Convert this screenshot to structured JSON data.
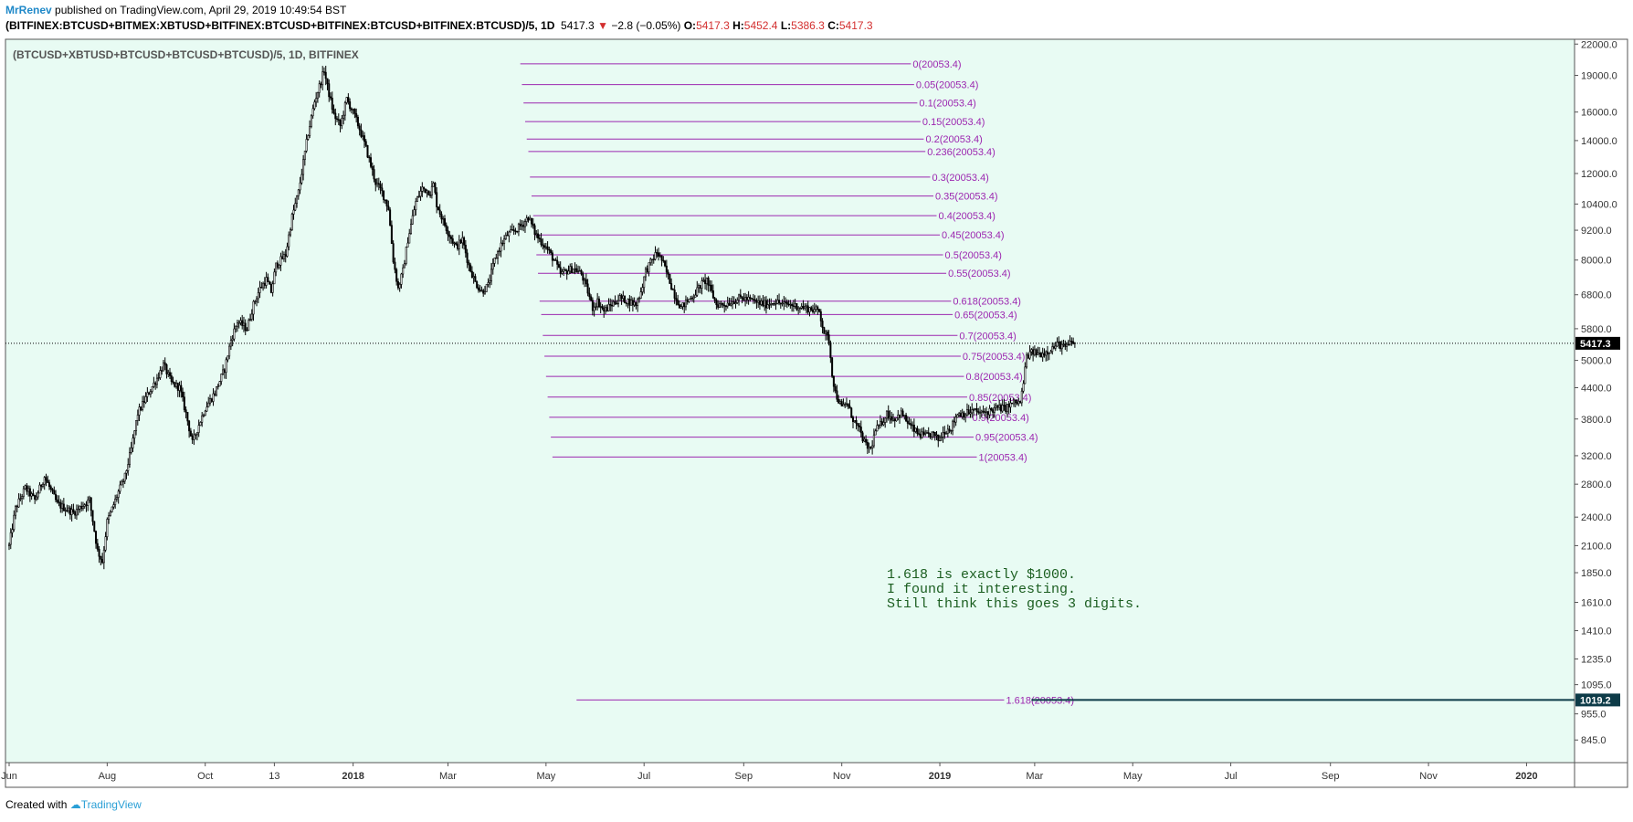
{
  "header": {
    "author": "MrRenev",
    "published": "published on TradingView.com, April 29, 2019 10:49:54 BST",
    "symbol": "(BITFINEX:BTCUSD+BITMEX:XBTUSD+BITFINEX:BTCUSD+BITFINEX:BTCUSD+BITFINEX:BTCUSD)/5, 1D",
    "last": "5417.3",
    "change": "−2.8 (−0.05%)",
    "open_label": "O:",
    "open": "5417.3",
    "high_label": "H:",
    "high": "5452.4",
    "low_label": "L:",
    "low": "5386.3",
    "close_label": "C:",
    "close": "5417.3"
  },
  "footer": {
    "created_with": "Created with",
    "brand": "TradingView"
  },
  "chart_data": {
    "type": "candlestick",
    "title": "(BTCUSD+XBTUSD+BTCUSD+BTCUSD+BTCUSD)/5, 1D, BITFINEX",
    "scale": "log",
    "ylim": [
      760,
      22500
    ],
    "y_ticks": [
      "22000.0",
      "19000.0",
      "16000.0",
      "14000.0",
      "12000.0",
      "10400.0",
      "9200.0",
      "8000.0",
      "6800.0",
      "5800.0",
      "5000.0",
      "4400.0",
      "3800.0",
      "3200.0",
      "2800.0",
      "2400.0",
      "2100.0",
      "1850.0",
      "1610.0",
      "1410.0",
      "1235.0",
      "1095.0",
      "955.0",
      "845.0"
    ],
    "y_tick_values": [
      22000,
      19000,
      16000,
      14000,
      12000,
      10400,
      9200,
      8000,
      6800,
      5800,
      5000,
      4400,
      3800,
      3200,
      2800,
      2400,
      2100,
      1850,
      1610,
      1410,
      1235,
      1095,
      955,
      845
    ],
    "x_ticks": [
      "Jun",
      "Aug",
      "Oct",
      "13",
      "2018",
      "Mar",
      "May",
      "Jul",
      "Sep",
      "Nov",
      "2019",
      "Mar",
      "May",
      "Jul",
      "Sep",
      "Nov",
      "2020"
    ],
    "x_tick_days": [
      0,
      61,
      122,
      165,
      214,
      273,
      334,
      395,
      457,
      518,
      579,
      638,
      699,
      760,
      822,
      883,
      944
    ],
    "bold_ticks": [
      "2018",
      "2019",
      "2020"
    ],
    "price_path": [
      [
        0,
        2100
      ],
      [
        4,
        2500
      ],
      [
        10,
        2750
      ],
      [
        16,
        2600
      ],
      [
        22,
        2900
      ],
      [
        30,
        2550
      ],
      [
        40,
        2450
      ],
      [
        50,
        2600
      ],
      [
        55,
        2050
      ],
      [
        58,
        1950
      ],
      [
        61,
        2350
      ],
      [
        68,
        2700
      ],
      [
        72,
        2900
      ],
      [
        76,
        3300
      ],
      [
        80,
        3900
      ],
      [
        86,
        4250
      ],
      [
        92,
        4600
      ],
      [
        96,
        4900
      ],
      [
        101,
        4500
      ],
      [
        106,
        4400
      ],
      [
        110,
        3900
      ],
      [
        114,
        3400
      ],
      [
        118,
        3700
      ],
      [
        122,
        4000
      ],
      [
        128,
        4300
      ],
      [
        134,
        4800
      ],
      [
        138,
        5500
      ],
      [
        142,
        6000
      ],
      [
        148,
        5800
      ],
      [
        152,
        6500
      ],
      [
        156,
        7000
      ],
      [
        160,
        7300
      ],
      [
        163,
        6900
      ],
      [
        166,
        7800
      ],
      [
        172,
        8200
      ],
      [
        176,
        9800
      ],
      [
        180,
        11000
      ],
      [
        186,
        14500
      ],
      [
        190,
        16800
      ],
      [
        194,
        18500
      ],
      [
        196,
        19500
      ],
      [
        198,
        18000
      ],
      [
        202,
        15800
      ],
      [
        206,
        15000
      ],
      [
        210,
        17000
      ],
      [
        214,
        16000
      ],
      [
        218,
        14800
      ],
      [
        222,
        13500
      ],
      [
        228,
        11500
      ],
      [
        232,
        11000
      ],
      [
        236,
        10200
      ],
      [
        239,
        8000
      ],
      [
        242,
        7000
      ],
      [
        245,
        7600
      ],
      [
        248,
        8800
      ],
      [
        253,
        10500
      ],
      [
        257,
        11200
      ],
      [
        262,
        11000
      ],
      [
        264,
        11400
      ],
      [
        266,
        10400
      ],
      [
        270,
        9600
      ],
      [
        274,
        9000
      ],
      [
        278,
        8500
      ],
      [
        282,
        8800
      ],
      [
        286,
        7800
      ],
      [
        290,
        7200
      ],
      [
        294,
        6900
      ],
      [
        298,
        7100
      ],
      [
        302,
        8000
      ],
      [
        306,
        8600
      ],
      [
        310,
        9000
      ],
      [
        315,
        9200
      ],
      [
        320,
        9500
      ],
      [
        323,
        9800
      ],
      [
        327,
        9100
      ],
      [
        330,
        8800
      ],
      [
        334,
        8500
      ],
      [
        339,
        8000
      ],
      [
        343,
        7500
      ],
      [
        347,
        7600
      ],
      [
        351,
        7700
      ],
      [
        356,
        7500
      ],
      [
        360,
        6900
      ],
      [
        363,
        6400
      ],
      [
        366,
        6600
      ],
      [
        370,
        6300
      ],
      [
        375,
        6500
      ],
      [
        380,
        6700
      ],
      [
        385,
        6600
      ],
      [
        390,
        6500
      ],
      [
        393,
        6900
      ],
      [
        396,
        7600
      ],
      [
        400,
        8000
      ],
      [
        403,
        8300
      ],
      [
        406,
        8000
      ],
      [
        410,
        7400
      ],
      [
        414,
        6800
      ],
      [
        418,
        6400
      ],
      [
        422,
        6600
      ],
      [
        426,
        6800
      ],
      [
        430,
        7100
      ],
      [
        434,
        7300
      ],
      [
        436,
        7000
      ],
      [
        440,
        6500
      ],
      [
        445,
        6500
      ],
      [
        450,
        6600
      ],
      [
        455,
        6700
      ],
      [
        460,
        6650
      ],
      [
        466,
        6550
      ],
      [
        471,
        6500
      ],
      [
        476,
        6600
      ],
      [
        481,
        6500
      ],
      [
        485,
        6500
      ],
      [
        490,
        6450
      ],
      [
        495,
        6400
      ],
      [
        500,
        6350
      ],
      [
        504,
        6300
      ],
      [
        507,
        5700
      ],
      [
        510,
        5500
      ],
      [
        512,
        4700
      ],
      [
        514,
        4300
      ],
      [
        518,
        4000
      ],
      [
        521,
        4100
      ],
      [
        525,
        3800
      ],
      [
        529,
        3600
      ],
      [
        533,
        3350
      ],
      [
        536,
        3300
      ],
      [
        539,
        3600
      ],
      [
        542,
        3700
      ],
      [
        546,
        3900
      ],
      [
        550,
        3800
      ],
      [
        555,
        3900
      ],
      [
        560,
        3700
      ],
      [
        565,
        3550
      ],
      [
        570,
        3500
      ],
      [
        574,
        3550
      ],
      [
        578,
        3450
      ],
      [
        582,
        3600
      ],
      [
        586,
        3650
      ],
      [
        590,
        3900
      ],
      [
        595,
        3900
      ],
      [
        600,
        3950
      ],
      [
        605,
        3900
      ],
      [
        610,
        3950
      ],
      [
        615,
        4000
      ],
      [
        620,
        4000
      ],
      [
        625,
        4100
      ],
      [
        629,
        4100
      ],
      [
        631,
        4500
      ],
      [
        633,
        5100
      ],
      [
        637,
        5200
      ],
      [
        641,
        5150
      ],
      [
        645,
        5200
      ],
      [
        649,
        5300
      ],
      [
        653,
        5400
      ],
      [
        657,
        5300
      ],
      [
        661,
        5450
      ],
      [
        663,
        5417
      ]
    ],
    "volatility": 0.035,
    "last_price": 5417.3,
    "last_label": "5417.3",
    "fib_levels": [
      {
        "label": "0(20053.4)",
        "price": 20053.4,
        "x0": 318,
        "x1": 561
      },
      {
        "label": "0.05(20053.4)",
        "price": 18200,
        "x0": 319,
        "x1": 563
      },
      {
        "label": "0.1(20053.4)",
        "price": 16700,
        "x0": 320,
        "x1": 565
      },
      {
        "label": "0.15(20053.4)",
        "price": 15300,
        "x0": 321,
        "x1": 567
      },
      {
        "label": "0.2(20053.4)",
        "price": 14100,
        "x0": 322,
        "x1": 569
      },
      {
        "label": "0.236(20053.4)",
        "price": 13300,
        "x0": 323,
        "x1": 570
      },
      {
        "label": "0.3(20053.4)",
        "price": 11800,
        "x0": 324,
        "x1": 573
      },
      {
        "label": "0.35(20053.4)",
        "price": 10800,
        "x0": 325,
        "x1": 575
      },
      {
        "label": "0.4(20053.4)",
        "price": 9850,
        "x0": 326,
        "x1": 577
      },
      {
        "label": "0.45(20053.4)",
        "price": 9000,
        "x0": 327,
        "x1": 579
      },
      {
        "label": "0.5(20053.4)",
        "price": 8200,
        "x0": 328,
        "x1": 581
      },
      {
        "label": "0.55(20053.4)",
        "price": 7520,
        "x0": 329,
        "x1": 583
      },
      {
        "label": "0.618(20053.4)",
        "price": 6600,
        "x0": 330,
        "x1": 586
      },
      {
        "label": "0.65(20053.4)",
        "price": 6200,
        "x0": 331,
        "x1": 587
      },
      {
        "label": "0.7(20053.4)",
        "price": 5620,
        "x0": 332,
        "x1": 590
      },
      {
        "label": "0.75(20053.4)",
        "price": 5100,
        "x0": 333,
        "x1": 592
      },
      {
        "label": "0.8(20053.4)",
        "price": 4640,
        "x0": 334,
        "x1": 594
      },
      {
        "label": "0.85(20053.4)",
        "price": 4210,
        "x0": 335,
        "x1": 596
      },
      {
        "label": "0.9(20053.4)",
        "price": 3830,
        "x0": 336,
        "x1": 598
      },
      {
        "label": "0.95(20053.4)",
        "price": 3490,
        "x0": 337,
        "x1": 600
      },
      {
        "label": "1(20053.4)",
        "price": 3180,
        "x0": 338,
        "x1": 602
      },
      {
        "label": "1.618(20053.4)",
        "price": 1019.2,
        "x0": 353,
        "x1": 619
      }
    ],
    "horizontal_line": {
      "price": 1019.2,
      "label": "1019.2",
      "x_start_day": 636
    },
    "annotation": [
      "1.618 is exactly $1000.",
      "I found it interesting.",
      "Still think this goes 3 digits."
    ],
    "colors": {
      "background": "#e8fbf3",
      "fib": "#9c27b0",
      "candle": "#000000",
      "hline": "#0d3b48",
      "border": "#555555"
    }
  }
}
